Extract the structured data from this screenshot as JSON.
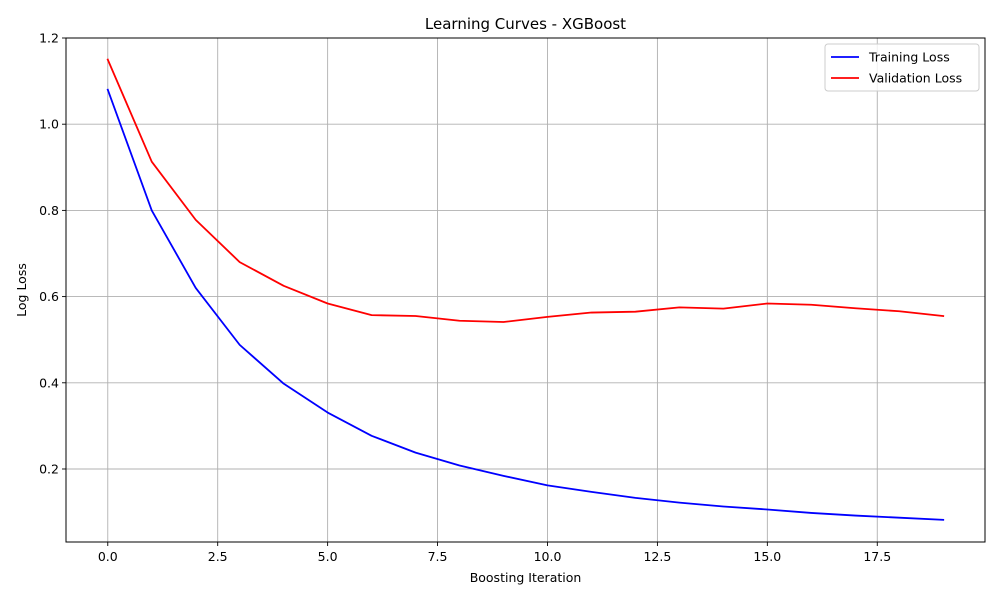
{
  "chart_data": {
    "type": "line",
    "title": "Learning Curves - XGBoost",
    "xlabel": "Boosting Iteration",
    "ylabel": "Log Loss",
    "xlim": [
      -0.95,
      19.95
    ],
    "ylim": [
      0.0306,
      1.2
    ],
    "xticks": [
      0,
      2.5,
      5,
      7.5,
      10,
      12.5,
      15,
      17.5
    ],
    "xtick_labels": [
      "0.0",
      "2.5",
      "5.0",
      "7.5",
      "10.0",
      "12.5",
      "15.0",
      "17.5"
    ],
    "yticks": [
      0.2,
      0.4,
      0.6,
      0.8,
      1.0,
      1.2
    ],
    "ytick_labels": [
      "0.2",
      "0.4",
      "0.6",
      "0.8",
      "1.0",
      "1.2"
    ],
    "grid": true,
    "legend_position": "top-right",
    "x": [
      0,
      1,
      2,
      3,
      4,
      5,
      6,
      7,
      8,
      9,
      10,
      11,
      12,
      13,
      14,
      15,
      16,
      17,
      18,
      19
    ],
    "series": [
      {
        "name": "Training Loss",
        "color": "#0000ff",
        "values": [
          1.08,
          0.8,
          0.62,
          0.488,
          0.398,
          0.331,
          0.277,
          0.238,
          0.208,
          0.184,
          0.162,
          0.147,
          0.133,
          0.122,
          0.113,
          0.106,
          0.098,
          0.092,
          0.087,
          0.082
        ]
      },
      {
        "name": "Validation Loss",
        "color": "#ff0000",
        "values": [
          1.15,
          0.913,
          0.778,
          0.68,
          0.625,
          0.584,
          0.557,
          0.555,
          0.544,
          0.541,
          0.553,
          0.563,
          0.565,
          0.575,
          0.572,
          0.584,
          0.581,
          0.573,
          0.566,
          0.555
        ]
      }
    ]
  }
}
